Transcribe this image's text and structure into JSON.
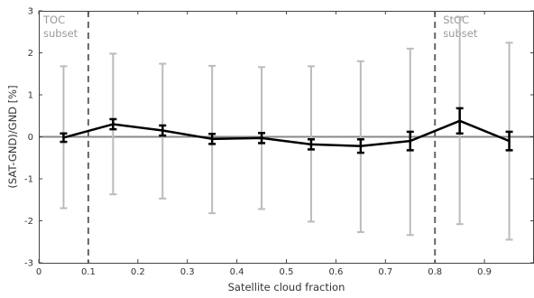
{
  "chart_data": {
    "type": "line",
    "title": "",
    "xlabel": "Satellite cloud fraction",
    "ylabel": "(SAT-GND)/GND [%]",
    "xlim": [
      0,
      1
    ],
    "ylim": [
      -3,
      3
    ],
    "xticks": [
      0,
      0.1,
      0.2,
      0.3,
      0.4,
      0.5,
      0.6,
      0.7,
      0.8,
      0.9
    ],
    "xtick_labels": [
      "0",
      "0.1",
      "0.2",
      "0.3",
      "0.4",
      "0.5",
      "0.6",
      "0.7",
      "0.8",
      "0.9"
    ],
    "yticks": [
      -3,
      -2,
      -1,
      0,
      1,
      2,
      3
    ],
    "ytick_labels": [
      "-3",
      "-2",
      "-1",
      "0",
      "1",
      "2",
      "3"
    ],
    "grid": false,
    "x": [
      0.05,
      0.15,
      0.25,
      0.35,
      0.45,
      0.55,
      0.65,
      0.75,
      0.85,
      0.95
    ],
    "series": [
      {
        "y": [
          -0.02,
          0.3,
          0.15,
          -0.05,
          -0.03,
          -0.18,
          -0.22,
          -0.1,
          0.38,
          -0.1
        ],
        "error_low": [
          -0.12,
          0.18,
          0.03,
          -0.17,
          -0.15,
          -0.3,
          -0.38,
          -0.32,
          0.08,
          -0.32
        ],
        "error_high": [
          0.08,
          0.42,
          0.27,
          0.07,
          0.09,
          -0.06,
          -0.06,
          0.12,
          0.68,
          0.12
        ],
        "color": "#000000"
      }
    ],
    "spread_bars": {
      "low": [
        -1.7,
        -1.37,
        -1.47,
        -1.82,
        -1.72,
        -2.02,
        -2.27,
        -2.34,
        -2.08,
        -2.45
      ],
      "high": [
        1.68,
        1.98,
        1.74,
        1.69,
        1.66,
        1.68,
        1.8,
        2.1,
        2.85,
        2.24
      ],
      "color": "#bbbbbb"
    },
    "reference_line": {
      "y": 0,
      "color": "#888888"
    },
    "vertical_lines": [
      {
        "x": 0.1,
        "color": "#666666",
        "style": "dashed"
      },
      {
        "x": 0.8,
        "color": "#666666",
        "style": "dashed"
      }
    ],
    "annotations": [
      {
        "lines": [
          "TOC",
          "subset"
        ]
      },
      {
        "lines": [
          "StOC",
          "subset"
        ]
      }
    ]
  }
}
